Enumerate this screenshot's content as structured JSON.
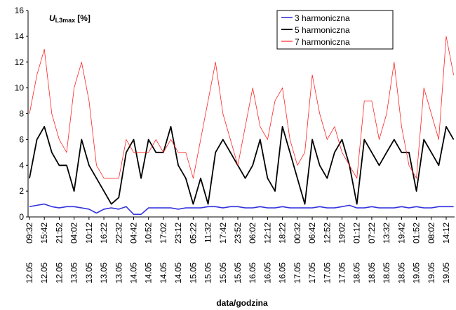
{
  "chart_data": {
    "type": "line",
    "title": {
      "symbol": "U",
      "subscript": "L3max",
      "unit": "[%]"
    },
    "x_label": "data/godzina",
    "categories": [
      "09:32",
      null,
      "15:42",
      null,
      "21:52",
      null,
      "04:02",
      null,
      "10:12",
      null,
      "16:22",
      null,
      "22:32",
      null,
      "04:42",
      null,
      "10:52",
      null,
      "17:02",
      null,
      "23:12",
      null,
      "05:22",
      null,
      "11:32",
      null,
      "17:42",
      null,
      "23:52",
      null,
      "06:02",
      null,
      "12:12",
      null,
      "18:22",
      null,
      "00:32",
      null,
      "06:42",
      null,
      "12:52",
      null,
      "19:02",
      null,
      "01:12",
      null,
      "07:22",
      null,
      "13:32",
      null,
      "19:42",
      null,
      "01:52",
      null,
      "08:02",
      null,
      "14:12",
      null
    ],
    "category_dates": [
      "12.05",
      null,
      "12.05",
      null,
      "12.05",
      null,
      "13.05",
      null,
      "13.05",
      null,
      "13.05",
      null,
      "13.05",
      null,
      "14.05",
      null,
      "14.05",
      null,
      "14.05",
      null,
      "14.05",
      null,
      "15.05",
      null,
      "15.05",
      null,
      "15.05",
      null,
      "15.05",
      null,
      "16.05",
      null,
      "16.05",
      null,
      "16.05",
      null,
      "17.05",
      null,
      "17.05",
      null,
      "17.05",
      null,
      "17.05",
      null,
      "18.05",
      null,
      "18.05",
      null,
      "18.05",
      null,
      "18.05",
      null,
      "19.05",
      null,
      "19.05",
      null,
      "19.05",
      null
    ],
    "series": [
      {
        "name": "3 harmoniczna",
        "color": "#3333dd",
        "values": [
          0.8,
          0.9,
          1.0,
          0.8,
          0.7,
          0.8,
          0.8,
          0.7,
          0.6,
          0.3,
          0.6,
          0.7,
          0.6,
          0.8,
          0.2,
          0.2,
          0.7,
          0.7,
          0.7,
          0.7,
          0.6,
          0.7,
          0.7,
          0.7,
          0.8,
          0.8,
          0.7,
          0.8,
          0.8,
          0.7,
          0.7,
          0.8,
          0.7,
          0.7,
          0.8,
          0.7,
          0.7,
          0.7,
          0.7,
          0.8,
          0.7,
          0.7,
          0.8,
          0.9,
          0.7,
          0.7,
          0.8,
          0.7,
          0.7,
          0.7,
          0.8,
          0.7,
          0.8,
          0.7,
          0.7,
          0.8,
          0.8,
          0.8
        ]
      },
      {
        "name": "5 harmoniczna",
        "color": "#000000",
        "values": [
          3,
          6,
          7,
          5,
          4,
          4,
          2,
          6,
          4,
          3,
          2,
          1,
          1.5,
          5,
          6,
          3,
          6,
          5,
          5,
          7,
          4,
          3,
          1,
          3,
          1,
          5,
          6,
          5,
          4,
          3,
          4,
          6,
          3,
          2,
          7,
          5,
          3,
          1,
          6,
          4,
          3,
          5,
          6,
          4,
          1,
          6,
          5,
          4,
          5,
          6,
          5,
          5,
          2,
          6,
          5,
          4,
          7,
          6
        ]
      },
      {
        "name": "7 harmoniczna",
        "color": "#ff2222",
        "values": [
          8,
          11,
          13,
          8,
          6,
          5,
          10,
          12,
          9,
          4,
          3,
          3,
          3,
          6,
          5,
          5,
          5,
          6,
          5,
          6,
          5,
          5,
          3,
          6,
          9,
          12,
          8,
          6,
          4,
          7,
          10,
          7,
          6,
          9,
          10,
          6,
          4,
          5,
          11,
          8,
          6,
          7,
          5,
          4,
          3,
          9,
          9,
          6,
          8,
          12,
          7,
          4,
          3,
          10,
          8,
          6,
          14,
          11
        ]
      }
    ],
    "ylim": [
      0,
      16
    ],
    "yticks": [
      0,
      2,
      4,
      6,
      8,
      10,
      12,
      14,
      16
    ],
    "legend": "top-right"
  }
}
